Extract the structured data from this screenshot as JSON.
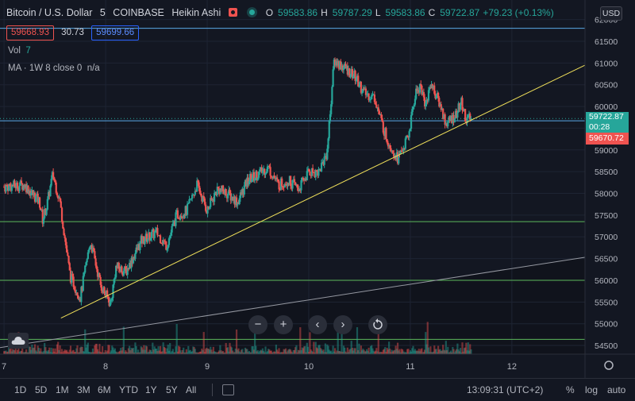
{
  "header": {
    "symbol": "Bitcoin / U.S. Dollar",
    "interval": "5",
    "exchange": "COINBASE",
    "chart_style": "Heikin Ashi",
    "o_label": "O",
    "o_value": "59583.86",
    "h_label": "H",
    "h_value": "59787.29",
    "l_label": "L",
    "l_value": "59583.86",
    "c_label": "C",
    "c_value": "59722.87",
    "change": "+79.23 (+0.13%)",
    "currency_button": "USD"
  },
  "quote": {
    "sell": "59668.93",
    "spread": "30.73",
    "buy": "59699.66"
  },
  "indicators": {
    "vol_label": "Vol",
    "vol_value": "7",
    "ma_label": "MA · 1W 8 close 0",
    "ma_value": "n/a"
  },
  "price_labels": {
    "last_price": "59722.87",
    "countdown": "00:28",
    "line_price": "59670.72"
  },
  "bottom_bar": {
    "ranges": [
      "1D",
      "5D",
      "1M",
      "3M",
      "6M",
      "YTD",
      "1Y",
      "5Y",
      "All"
    ],
    "time": "13:09:31 (UTC+2)",
    "percent": "%",
    "log": "log",
    "auto": "auto"
  },
  "colors": {
    "background": "#131722",
    "up": "#26a69a",
    "down": "#ef5350",
    "trendline": "#f0e05a",
    "hline_blue": "#5aa9e6",
    "hline_green": "#5cb85c",
    "grid": "#1e2433"
  },
  "chart_data": {
    "type": "candlestick",
    "y_ticks": [
      54500,
      55000,
      55500,
      56000,
      56500,
      57000,
      57500,
      58000,
      58500,
      59000,
      59500,
      60000,
      60500,
      61000,
      61500,
      62000
    ],
    "x_ticks": [
      "7",
      "8",
      "9",
      "10",
      "11",
      "12"
    ],
    "ylim": [
      54300,
      62450
    ],
    "xlim_days": [
      6.96,
      12.72
    ],
    "price_path": [
      [
        7.0,
        58150
      ],
      [
        7.2,
        58200
      ],
      [
        7.35,
        57800
      ],
      [
        7.38,
        57400
      ],
      [
        7.42,
        57700
      ],
      [
        7.48,
        58450
      ],
      [
        7.55,
        57800
      ],
      [
        7.65,
        56100
      ],
      [
        7.75,
        55600
      ],
      [
        7.85,
        56900
      ],
      [
        7.95,
        55900
      ],
      [
        8.05,
        55450
      ],
      [
        8.1,
        56300
      ],
      [
        8.2,
        56200
      ],
      [
        8.35,
        56900
      ],
      [
        8.5,
        57100
      ],
      [
        8.6,
        56800
      ],
      [
        8.7,
        57500
      ],
      [
        8.8,
        57600
      ],
      [
        8.9,
        58200
      ],
      [
        9.0,
        57600
      ],
      [
        9.1,
        58100
      ],
      [
        9.2,
        58000
      ],
      [
        9.3,
        57800
      ],
      [
        9.4,
        58300
      ],
      [
        9.5,
        58450
      ],
      [
        9.6,
        58600
      ],
      [
        9.7,
        58200
      ],
      [
        9.8,
        58300
      ],
      [
        9.9,
        58100
      ],
      [
        10.0,
        58500
      ],
      [
        10.1,
        58500
      ],
      [
        10.18,
        58950
      ],
      [
        10.25,
        61050
      ],
      [
        10.35,
        60900
      ],
      [
        10.45,
        60700
      ],
      [
        10.55,
        60300
      ],
      [
        10.65,
        60200
      ],
      [
        10.72,
        59600
      ],
      [
        10.78,
        59200
      ],
      [
        10.88,
        58800
      ],
      [
        10.98,
        59300
      ],
      [
        11.05,
        60300
      ],
      [
        11.1,
        60500
      ],
      [
        11.15,
        60000
      ],
      [
        11.2,
        60550
      ],
      [
        11.3,
        60000
      ],
      [
        11.35,
        59600
      ],
      [
        11.45,
        59800
      ],
      [
        11.5,
        60100
      ],
      [
        11.55,
        59700
      ],
      [
        11.6,
        59720
      ]
    ],
    "horizontal_lines": [
      {
        "price": 61800,
        "color": "blue"
      },
      {
        "price": 59670.72,
        "color": "blue"
      },
      {
        "price": 57350,
        "color": "green"
      },
      {
        "price": 56000,
        "color": "green"
      },
      {
        "price": 54640,
        "color": "green"
      }
    ],
    "trendlines": [
      {
        "from": [
          7.56,
          55130
        ],
        "to": [
          12.72,
          60950
        ],
        "color": "yellow"
      },
      {
        "from": [
          6.96,
          54450
        ],
        "to": [
          12.72,
          56530
        ],
        "color": "white"
      }
    ]
  }
}
